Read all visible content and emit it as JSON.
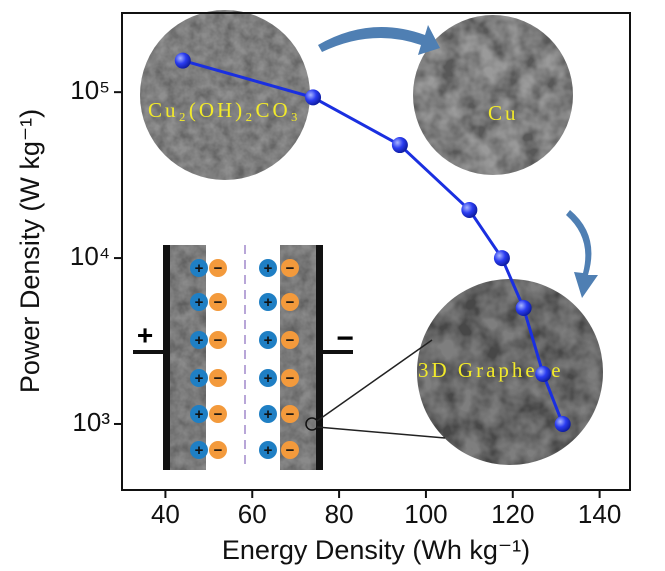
{
  "chart_data": {
    "type": "line",
    "x_label": "Energy Density (Wh kg⁻¹)",
    "y_label": "Power Density (W kg⁻¹)",
    "x": [
      44,
      74,
      94,
      110,
      117.5,
      122.5,
      127,
      131.5
    ],
    "series": [
      {
        "color": "#1a2fe0",
        "values": [
          155000,
          93000,
          48000,
          19500,
          10000,
          5000,
          2000,
          1000
        ]
      }
    ],
    "xlim": [
      30,
      147
    ],
    "xticks": [
      40,
      60,
      80,
      100,
      120,
      140
    ],
    "ylim": [
      400,
      300000
    ],
    "log_y": true,
    "yticks": [
      {
        "value": 1000,
        "label": "10³"
      },
      {
        "value": 10000,
        "label": "10⁴"
      },
      {
        "value": 100000,
        "label": "10⁵"
      }
    ],
    "annotations": [
      "Cu₂(OH)₂CO₃",
      "Cu",
      "3D Graphene"
    ],
    "electrode_signs": [
      "+",
      "−"
    ],
    "ion_signs": [
      "+",
      "−"
    ]
  }
}
